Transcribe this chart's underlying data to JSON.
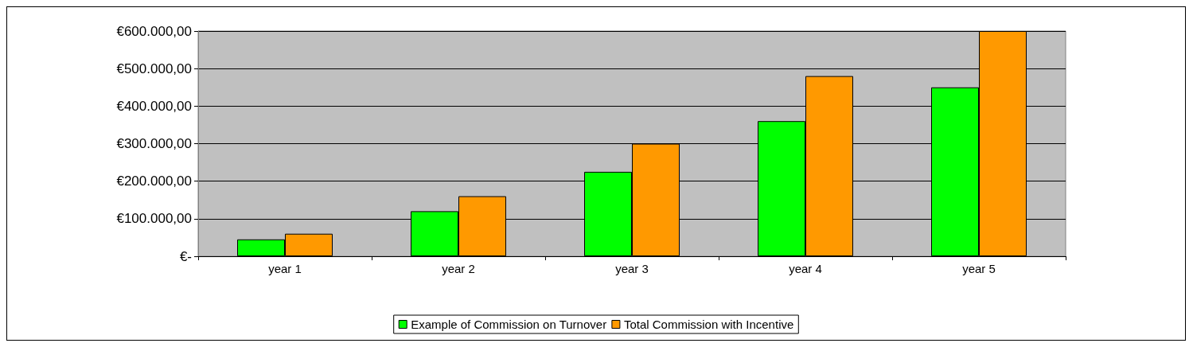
{
  "chart_data": {
    "type": "bar",
    "categories": [
      "year 1",
      "year 2",
      "year 3",
      "year 4",
      "year 5"
    ],
    "series": [
      {
        "name": "Example of Commission on Turnover",
        "color": "#00ff00",
        "values": [
          45000,
          120000,
          225000,
          360000,
          450000
        ]
      },
      {
        "name": "Total Commission with Incentive",
        "color": "#ff9900",
        "values": [
          60000,
          160000,
          300000,
          480000,
          600000
        ]
      }
    ],
    "ylim": [
      0,
      600000
    ],
    "yticks": [
      {
        "value": 0,
        "label": "€-"
      },
      {
        "value": 100000,
        "label": "€100.000,00"
      },
      {
        "value": 200000,
        "label": "€200.000,00"
      },
      {
        "value": 300000,
        "label": "€300.000,00"
      },
      {
        "value": 400000,
        "label": "€400.000,00"
      },
      {
        "value": 500000,
        "label": "€500.000,00"
      },
      {
        "value": 600000,
        "label": "€600.000,00"
      }
    ],
    "grid": "y",
    "legend": "bottom"
  }
}
